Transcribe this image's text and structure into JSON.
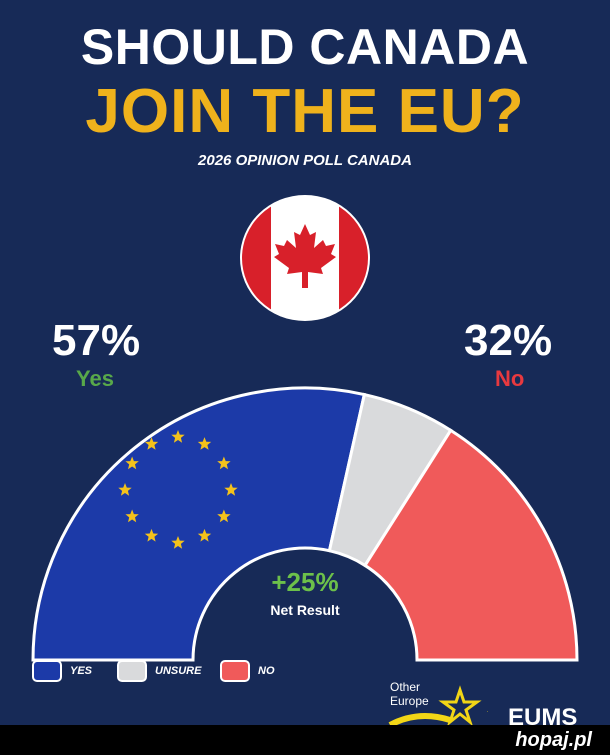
{
  "header": {
    "title_line1": "SHOULD CANADA",
    "title_line2": "JOIN THE EU?",
    "subtitle": "2026 OPINION POLL CANADA"
  },
  "results": {
    "yes_percent": "57%",
    "yes_label": "Yes",
    "no_percent": "32%",
    "no_label": "No",
    "net_value": "+25%",
    "net_label": "Net Result"
  },
  "legend": [
    {
      "label": "YES",
      "color": "#1c3aa8"
    },
    {
      "label": "UNSURE",
      "color": "#d9dadc"
    },
    {
      "label": "NO",
      "color": "#f05a5a"
    }
  ],
  "branding": {
    "line1": "Other",
    "line2": "Europe",
    "brand": "EUMS"
  },
  "watermark": "hopaj.pl",
  "colors": {
    "background": "#172a57",
    "title_accent": "#efb21c",
    "yes": "#1c3aa8",
    "unsure": "#d9dadc",
    "no": "#f05a5a",
    "stars": "#f4c21b"
  },
  "icons": {
    "flag": "canada-flag-icon",
    "eu_stars": "eu-stars-icon",
    "logo": "star-swoosh-icon"
  },
  "chart_data": {
    "type": "pie",
    "categories": [
      "Yes",
      "Unsure",
      "No"
    ],
    "values": [
      57,
      11,
      32
    ],
    "title": "SHOULD CANADA JOIN THE EU?",
    "subtitle": "2026 OPINION POLL CANADA",
    "legend": [
      "YES",
      "UNSURE",
      "NO"
    ],
    "legend_position": "bottom-left",
    "net_result": 25
  }
}
